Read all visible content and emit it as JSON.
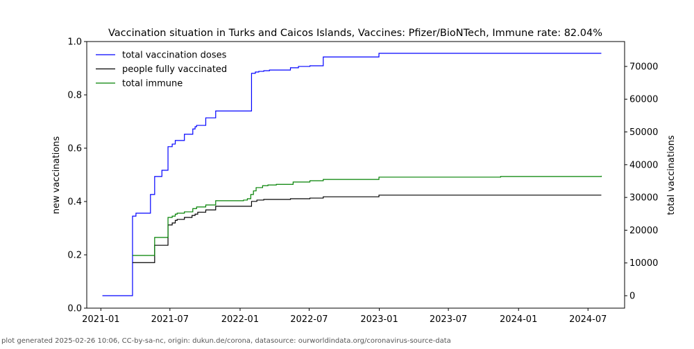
{
  "chart_data": {
    "type": "line",
    "title": "Vaccination situation in Turks and Caicos Islands, Vaccines: Pfizer/BioNTech, Immune rate: 82.04%",
    "ylabel_left": "new vaccinations",
    "ylabel_right": "total vaccinations",
    "ylim_left": [
      0,
      1.0
    ],
    "ylim_right": [
      -3800,
      77600
    ],
    "xlim": [
      "2020-11-25",
      "2024-10-05"
    ],
    "left_ticks": [
      "0.0",
      "0.2",
      "0.4",
      "0.6",
      "0.8",
      "1.0"
    ],
    "right_ticks": [
      "0",
      "10000",
      "20000",
      "30000",
      "40000",
      "50000",
      "60000",
      "70000"
    ],
    "x_ticks": [
      "2021-01",
      "2021-07",
      "2022-01",
      "2022-07",
      "2023-01",
      "2023-07",
      "2024-01",
      "2024-07"
    ],
    "legend_position": "top-left",
    "series": [
      {
        "name": "total vaccination doses",
        "color": "#0000ff",
        "points": [
          [
            "2021-01-05",
            0
          ],
          [
            "2021-03-25",
            24300
          ],
          [
            "2021-04-03",
            25200
          ],
          [
            "2021-05-11",
            30900
          ],
          [
            "2021-05-22",
            36400
          ],
          [
            "2021-06-10",
            38300
          ],
          [
            "2021-06-26",
            45500
          ],
          [
            "2021-07-07",
            46300
          ],
          [
            "2021-07-15",
            47400
          ],
          [
            "2021-08-08",
            49300
          ],
          [
            "2021-08-30",
            50900
          ],
          [
            "2021-09-05",
            51600
          ],
          [
            "2021-09-09",
            52000
          ],
          [
            "2021-10-03",
            54300
          ],
          [
            "2021-10-29",
            56400
          ],
          [
            "2022-01-31",
            67900
          ],
          [
            "2022-02-10",
            68300
          ],
          [
            "2022-02-19",
            68500
          ],
          [
            "2022-03-04",
            68700
          ],
          [
            "2022-03-19",
            68900
          ],
          [
            "2022-05-13",
            69600
          ],
          [
            "2022-06-03",
            70000
          ],
          [
            "2022-07-03",
            70200
          ],
          [
            "2022-08-07",
            72900
          ],
          [
            "2022-12-31",
            74000
          ],
          [
            "2024-08-05",
            74000
          ]
        ]
      },
      {
        "name": "people fully vaccinated",
        "color": "#000000",
        "points": [
          [
            "2021-03-25",
            10100
          ],
          [
            "2021-05-22",
            15400
          ],
          [
            "2021-06-26",
            21600
          ],
          [
            "2021-07-07",
            22200
          ],
          [
            "2021-07-15",
            23000
          ],
          [
            "2021-07-20",
            23300
          ],
          [
            "2021-08-08",
            23900
          ],
          [
            "2021-08-28",
            24500
          ],
          [
            "2021-09-05",
            24900
          ],
          [
            "2021-09-12",
            25500
          ],
          [
            "2021-10-03",
            26200
          ],
          [
            "2021-10-29",
            27300
          ],
          [
            "2022-01-31",
            28800
          ],
          [
            "2022-02-14",
            29200
          ],
          [
            "2022-03-04",
            29400
          ],
          [
            "2022-05-13",
            29600
          ],
          [
            "2022-07-03",
            29800
          ],
          [
            "2022-08-07",
            30200
          ],
          [
            "2022-12-31",
            30700
          ],
          [
            "2024-08-05",
            30700
          ]
        ]
      },
      {
        "name": "total immune",
        "color": "#008000",
        "points": [
          [
            "2021-03-25",
            12300
          ],
          [
            "2021-05-22",
            17800
          ],
          [
            "2021-06-26",
            23900
          ],
          [
            "2021-07-07",
            24300
          ],
          [
            "2021-07-15",
            24900
          ],
          [
            "2021-07-20",
            25200
          ],
          [
            "2021-08-08",
            25600
          ],
          [
            "2021-08-30",
            26600
          ],
          [
            "2021-09-09",
            27100
          ],
          [
            "2021-10-03",
            27700
          ],
          [
            "2021-10-29",
            29000
          ],
          [
            "2022-01-10",
            29200
          ],
          [
            "2022-01-20",
            29600
          ],
          [
            "2022-01-29",
            30900
          ],
          [
            "2022-02-05",
            32000
          ],
          [
            "2022-02-12",
            33000
          ],
          [
            "2022-03-01",
            33600
          ],
          [
            "2022-03-15",
            33800
          ],
          [
            "2022-04-06",
            34000
          ],
          [
            "2022-05-20",
            34700
          ],
          [
            "2022-07-03",
            35100
          ],
          [
            "2022-08-07",
            35500
          ],
          [
            "2022-12-31",
            36200
          ],
          [
            "2023-11-15",
            36400
          ],
          [
            "2024-08-05",
            36600
          ]
        ]
      }
    ]
  },
  "footer": "plot generated 2025-02-26 10:06, CC-by-sa-nc, origin: dukun.de/corona, datasource: ourworldindata.org/coronavirus-source-data"
}
